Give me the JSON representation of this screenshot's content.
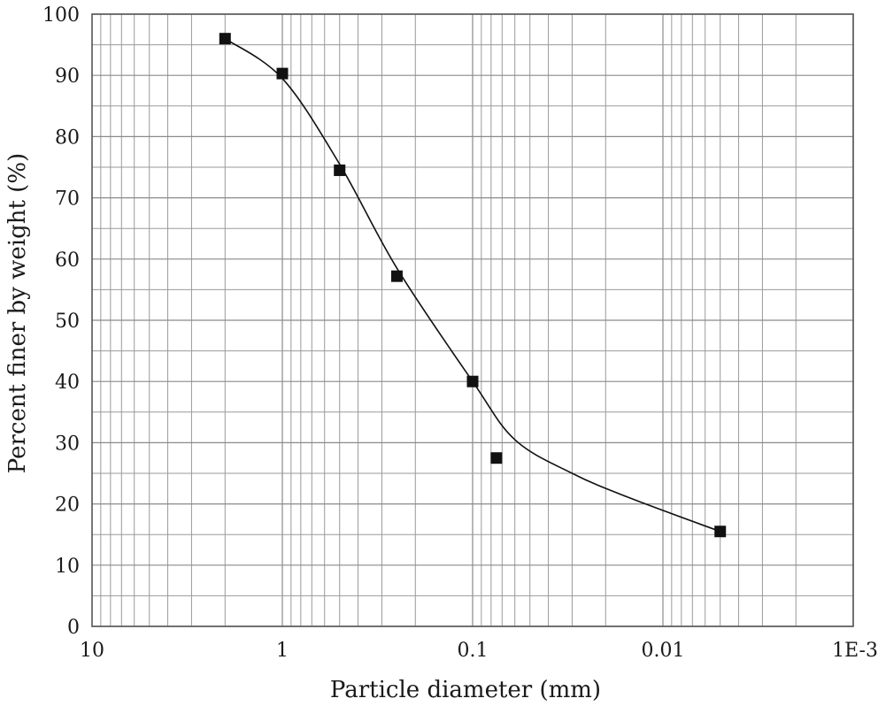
{
  "chart_data": {
    "type": "scatter",
    "title": "",
    "xlabel": "Particle diameter (mm)",
    "ylabel": "Percent finer by weight (%)",
    "x_scale": "log",
    "x_reversed": true,
    "xlim": [
      10,
      0.001
    ],
    "ylim": [
      0,
      100
    ],
    "grid": true,
    "x_ticks": [
      {
        "value": 10,
        "label": "10"
      },
      {
        "value": 1,
        "label": "1"
      },
      {
        "value": 0.1,
        "label": "0.1"
      },
      {
        "value": 0.01,
        "label": "0.01"
      },
      {
        "value": 0.001,
        "label": "1E-3"
      }
    ],
    "y_ticks": [
      {
        "value": 0,
        "label": "0"
      },
      {
        "value": 10,
        "label": "10"
      },
      {
        "value": 20,
        "label": "20"
      },
      {
        "value": 30,
        "label": "30"
      },
      {
        "value": 40,
        "label": "40"
      },
      {
        "value": 50,
        "label": "50"
      },
      {
        "value": 60,
        "label": "60"
      },
      {
        "value": 70,
        "label": "70"
      },
      {
        "value": 80,
        "label": "80"
      },
      {
        "value": 90,
        "label": "90"
      },
      {
        "value": 100,
        "label": "100"
      }
    ],
    "series": [
      {
        "marker": "square",
        "color": "#111111",
        "points": [
          {
            "x": 2.0,
            "y": 96
          },
          {
            "x": 1.0,
            "y": 90.3
          },
          {
            "x": 0.5,
            "y": 74.5
          },
          {
            "x": 0.25,
            "y": 57.2
          },
          {
            "x": 0.1,
            "y": 40
          },
          {
            "x": 0.075,
            "y": 27.5
          },
          {
            "x": 0.005,
            "y": 15.5
          }
        ]
      }
    ],
    "trend_curve": {
      "color": "#111111",
      "points": [
        {
          "x": 2.0,
          "y": 96
        },
        {
          "x": 1.0,
          "y": 89.5
        },
        {
          "x": 0.5,
          "y": 75.5
        },
        {
          "x": 0.25,
          "y": 58.5
        },
        {
          "x": 0.1,
          "y": 40
        },
        {
          "x": 0.06,
          "y": 30.5
        },
        {
          "x": 0.03,
          "y": 25
        },
        {
          "x": 0.015,
          "y": 21
        },
        {
          "x": 0.005,
          "y": 15.5
        }
      ]
    }
  }
}
